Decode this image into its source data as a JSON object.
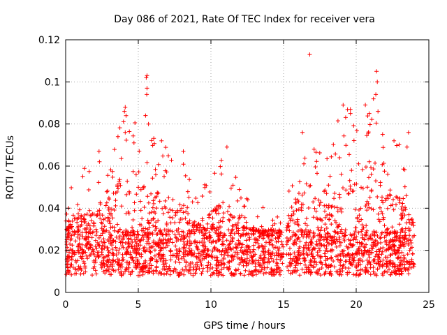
{
  "chart_data": {
    "type": "scatter",
    "title": "Day 086 of 2021, Rate Of TEC Index for receiver vera",
    "xlabel": "GPS time / hours",
    "ylabel": "ROTI / TECUs",
    "xlim": [
      0,
      25
    ],
    "ylim": [
      0,
      0.12
    ],
    "grid": true,
    "marker": "plus",
    "color": "#ff0000",
    "x_ticks": [
      0,
      5,
      10,
      15,
      20,
      25
    ],
    "x_tick_labels": [
      "0",
      "5",
      "10",
      "15",
      "20",
      "25"
    ],
    "y_ticks": [
      0,
      0.02,
      0.04,
      0.06,
      0.08,
      0.1,
      0.12
    ],
    "y_tick_labels": [
      "0",
      "0.02",
      "0.04",
      "0.06",
      "0.08",
      "0.1",
      "0.12"
    ],
    "data_span_hours": [
      0,
      24
    ],
    "gap_hours": [
      15.0,
      15.2
    ],
    "baseline_band": [
      0.008,
      0.03
    ],
    "envelope": [
      {
        "x": 0,
        "y": 0.045
      },
      {
        "x": 1,
        "y": 0.062
      },
      {
        "x": 2,
        "y": 0.06
      },
      {
        "x": 3,
        "y": 0.07
      },
      {
        "x": 4,
        "y": 0.088
      },
      {
        "x": 5,
        "y": 0.085
      },
      {
        "x": 6,
        "y": 0.075
      },
      {
        "x": 7,
        "y": 0.07
      },
      {
        "x": 8,
        "y": 0.065
      },
      {
        "x": 9,
        "y": 0.05
      },
      {
        "x": 10,
        "y": 0.06
      },
      {
        "x": 11,
        "y": 0.068
      },
      {
        "x": 12,
        "y": 0.05
      },
      {
        "x": 13,
        "y": 0.045
      },
      {
        "x": 14,
        "y": 0.04
      },
      {
        "x": 15,
        "y": 0.04
      },
      {
        "x": 16,
        "y": 0.075
      },
      {
        "x": 17,
        "y": 0.07
      },
      {
        "x": 18,
        "y": 0.065
      },
      {
        "x": 19,
        "y": 0.089
      },
      {
        "x": 20,
        "y": 0.085
      },
      {
        "x": 21,
        "y": 0.1
      },
      {
        "x": 22,
        "y": 0.07
      },
      {
        "x": 23,
        "y": 0.075
      },
      {
        "x": 24,
        "y": 0.05
      }
    ],
    "outliers": [
      {
        "x": 16.8,
        "y": 0.113
      },
      {
        "x": 5.6,
        "y": 0.103
      },
      {
        "x": 5.55,
        "y": 0.102
      },
      {
        "x": 21.4,
        "y": 0.105
      },
      {
        "x": 21.45,
        "y": 0.1
      },
      {
        "x": 5.6,
        "y": 0.097
      },
      {
        "x": 5.58,
        "y": 0.094
      },
      {
        "x": 21.35,
        "y": 0.094
      },
      {
        "x": 19.6,
        "y": 0.087
      },
      {
        "x": 19.6,
        "y": 0.085
      },
      {
        "x": 19.1,
        "y": 0.089
      },
      {
        "x": 4.1,
        "y": 0.088
      },
      {
        "x": 4.05,
        "y": 0.086
      },
      {
        "x": 21.5,
        "y": 0.086
      },
      {
        "x": 5.5,
        "y": 0.084
      },
      {
        "x": 20.9,
        "y": 0.085
      },
      {
        "x": 5.7,
        "y": 0.08
      },
      {
        "x": 4.1,
        "y": 0.076
      },
      {
        "x": 16.3,
        "y": 0.076
      },
      {
        "x": 23.6,
        "y": 0.076
      },
      {
        "x": 3.6,
        "y": 0.074
      },
      {
        "x": 22.6,
        "y": 0.072
      },
      {
        "x": 6.6,
        "y": 0.072
      },
      {
        "x": 11.1,
        "y": 0.069
      },
      {
        "x": 2.3,
        "y": 0.067
      },
      {
        "x": 8.1,
        "y": 0.067
      },
      {
        "x": 23.5,
        "y": 0.069
      },
      {
        "x": 17.1,
        "y": 0.068
      }
    ]
  }
}
